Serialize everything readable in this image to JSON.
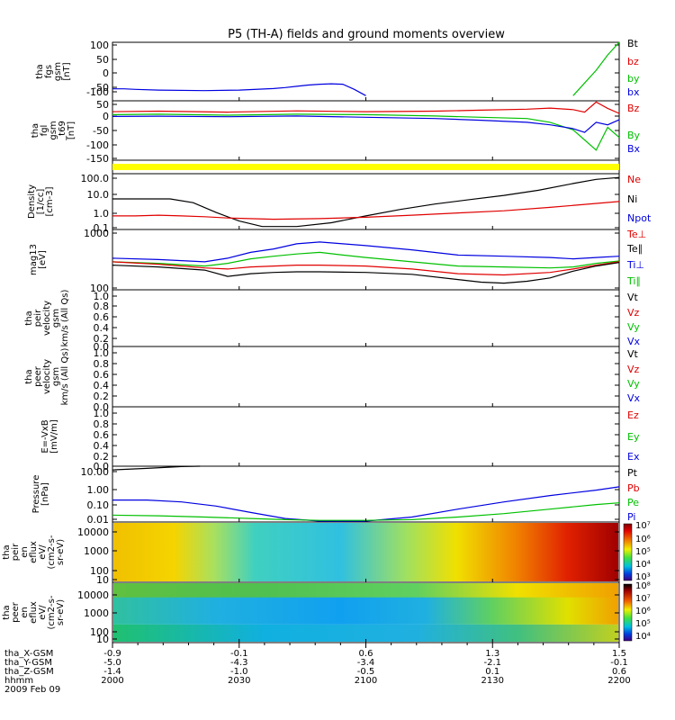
{
  "title": "P5 (TH-A) fields and ground moments overview",
  "colors": {
    "black": "#000000",
    "red": "#e00000",
    "green": "#00c000",
    "blue": "#0000e0",
    "yellow": "#ffff00"
  },
  "xaxis": {
    "rows": [
      {
        "label": "tha_X-GSM",
        "values": [
          "-0.9",
          "-0.1",
          "0.6",
          "1.3",
          "1.5"
        ]
      },
      {
        "label": "tha_Y-GSM",
        "values": [
          "-5.0",
          "-4.3",
          "-3.4",
          "-2.1",
          "-0.1"
        ]
      },
      {
        "label": "tha_Z-GSM",
        "values": [
          "-1.4",
          "-1.0",
          "-0.5",
          "0.1",
          "0.6"
        ]
      },
      {
        "label": "hhmm",
        "values": [
          "2000",
          "2030",
          "2100",
          "2130",
          "2200"
        ]
      }
    ],
    "date": "2009 Feb 09"
  },
  "panels": [
    {
      "id": "fgs",
      "ylabel": [
        "tha",
        "fgs",
        "gsm",
        "[nT]"
      ],
      "ticks": [
        "100",
        "50",
        "0",
        "-50",
        "-100"
      ],
      "legend": [
        "Bt",
        "bz",
        "by",
        "bx"
      ],
      "legend_colors": [
        "black",
        "red",
        "green",
        "blue"
      ]
    },
    {
      "id": "fgl",
      "ylabel": [
        "tha",
        "fgl",
        "gsm",
        "_t69",
        "[nT]"
      ],
      "ticks": [
        "50",
        "0",
        "-50",
        "-100",
        "-150"
      ],
      "legend": [
        "Bz",
        "By",
        "Bx"
      ],
      "legend_colors": [
        "red",
        "green",
        "blue"
      ]
    },
    {
      "id": "bar",
      "ylabel": [],
      "ticks": [],
      "legend": [],
      "legend_colors": []
    },
    {
      "id": "dens",
      "ylabel": [
        "Density",
        "[1/cc]",
        "[cm-3]"
      ],
      "ticks": [
        "100.0",
        "10.0",
        "1.0",
        "0.1"
      ],
      "legend": [
        "Ne",
        "Ni",
        "Npot"
      ],
      "legend_colors": [
        "red",
        "black",
        "blue"
      ]
    },
    {
      "id": "temp",
      "ylabel": [
        "mag13",
        "[eV]"
      ],
      "ticks": [
        "1000",
        "100"
      ],
      "legend": [
        "Te⊥",
        "Te∥",
        "Ti⊥",
        "Ti∥"
      ],
      "legend_colors": [
        "red",
        "black",
        "blue",
        "green"
      ]
    },
    {
      "id": "peir",
      "ylabel": [
        "tha",
        "peir",
        "velocity",
        "gsm",
        "km/s (All Qs)"
      ],
      "ticks": [
        "1.0",
        "0.8",
        "0.6",
        "0.4",
        "0.2",
        "0.0"
      ],
      "legend": [
        "Vt",
        "Vz",
        "Vy",
        "Vx"
      ],
      "legend_colors": [
        "black",
        "red",
        "green",
        "blue"
      ]
    },
    {
      "id": "peer",
      "ylabel": [
        "tha",
        "peer",
        "velocity",
        "gsm",
        "km/s (All Qs)"
      ],
      "ticks": [
        "1.0",
        "0.8",
        "0.6",
        "0.4",
        "0.2",
        "0.0"
      ],
      "legend": [
        "Vt",
        "Vz",
        "Vy",
        "Vx"
      ],
      "legend_colors": [
        "black",
        "red",
        "green",
        "blue"
      ]
    },
    {
      "id": "efld",
      "ylabel": [
        "E=-VxB",
        "[mV/m]"
      ],
      "ticks": [
        "1.0",
        "0.8",
        "0.6",
        "0.4",
        "0.2",
        "0.0"
      ],
      "legend": [
        "Ez",
        "Ey",
        "Ex"
      ],
      "legend_colors": [
        "red",
        "green",
        "blue"
      ]
    },
    {
      "id": "pres",
      "ylabel": [
        "Pressure",
        "[nPa]"
      ],
      "ticks": [
        "10.00",
        "1.00",
        "0.10",
        "0.01"
      ],
      "legend": [
        "Pt",
        "Pb",
        "Pe",
        "Pi"
      ],
      "legend_colors": [
        "black",
        "red",
        "green",
        "blue"
      ]
    },
    {
      "id": "peirsp",
      "ylabel": [
        "tha",
        "peir",
        "en",
        "eflux",
        "eV/",
        "(cm2-s-",
        "sr-eV)"
      ],
      "ticks": [
        "10000",
        "1000",
        "100",
        "10"
      ],
      "legend": [],
      "legend_colors": []
    },
    {
      "id": "peersp",
      "ylabel": [
        "tha",
        "peer",
        "en",
        "eflux",
        "eV/",
        "(cm2-s-",
        "sr-eV)"
      ],
      "ticks": [
        "10000",
        "1000",
        "100",
        "10"
      ],
      "legend": [],
      "legend_colors": []
    }
  ],
  "colorbars": [
    {
      "ticks": [
        "10⁷",
        "10⁶",
        "10⁵",
        "10⁴",
        "10³"
      ]
    },
    {
      "ticks": [
        "10⁸",
        "10⁷",
        "10⁶",
        "10⁵",
        "10⁴"
      ]
    }
  ],
  "chart_data": {
    "type": "line",
    "title": "P5 (TH-A) fields and ground moments overview",
    "x_unit": "hhmm",
    "x_ticks": [
      "2000",
      "2030",
      "2100",
      "2130",
      "2200"
    ],
    "series": [
      {
        "name": "bx",
        "panel": "fgs",
        "x": [
          0,
          5,
          10,
          20,
          40,
          55,
          70,
          75,
          80,
          85,
          90,
          95,
          100,
          105,
          110
        ],
        "y": [
          -73,
          -73,
          -75,
          -78,
          -80,
          -78,
          -72,
          -68,
          -63,
          -58,
          -55,
          -53,
          -55,
          -75,
          -100
        ]
      },
      {
        "name": "by",
        "panel": "fgs",
        "x": [
          200,
          205,
          210,
          215,
          220
        ],
        "y": [
          -100,
          -50,
          0,
          60,
          110
        ]
      },
      {
        "name": "Bz",
        "panel": "fgl",
        "x": [
          0,
          20,
          50,
          80,
          110,
          140,
          160,
          180,
          190,
          200,
          205,
          210,
          215,
          220
        ],
        "y": [
          22,
          24,
          20,
          25,
          22,
          24,
          28,
          32,
          36,
          30,
          20,
          60,
          35,
          15
        ]
      },
      {
        "name": "By",
        "panel": "fgl",
        "x": [
          0,
          20,
          50,
          80,
          110,
          140,
          160,
          180,
          190,
          200,
          205,
          210,
          215,
          220
        ],
        "y": [
          10,
          12,
          8,
          12,
          10,
          5,
          0,
          -5,
          -20,
          -50,
          -90,
          -130,
          -40,
          -80
        ]
      },
      {
        "name": "Bx",
        "panel": "fgl",
        "x": [
          0,
          20,
          50,
          80,
          110,
          140,
          160,
          180,
          190,
          200,
          205,
          210,
          215,
          220
        ],
        "y": [
          3,
          4,
          2,
          5,
          0,
          -5,
          -12,
          -20,
          -30,
          -45,
          -60,
          -20,
          -30,
          -10
        ]
      },
      {
        "name": "Ni",
        "panel": "dens",
        "x": [
          0,
          25,
          35,
          45,
          55,
          65,
          80,
          95,
          110,
          125,
          140,
          155,
          170,
          185,
          200,
          210,
          220
        ],
        "y": [
          5,
          5,
          3,
          0.8,
          0.25,
          0.12,
          0.12,
          0.2,
          0.5,
          1.2,
          2.5,
          4.5,
          8,
          16,
          40,
          70,
          90
        ]
      },
      {
        "name": "Ne",
        "panel": "dens",
        "x": [
          0,
          10,
          20,
          30,
          40,
          50,
          70,
          90,
          110,
          130,
          150,
          170,
          190,
          220
        ],
        "y": [
          0.5,
          0.5,
          0.55,
          0.5,
          0.45,
          0.38,
          0.32,
          0.35,
          0.42,
          0.55,
          0.75,
          1,
          1.6,
          3.5
        ]
      },
      {
        "name": "Ti⊥",
        "panel": "temp",
        "x": [
          0,
          20,
          40,
          50,
          60,
          70,
          80,
          90,
          100,
          110,
          130,
          150,
          170,
          190,
          200,
          210,
          220
        ],
        "y": [
          350,
          330,
          300,
          350,
          450,
          520,
          650,
          700,
          650,
          600,
          500,
          400,
          380,
          360,
          340,
          360,
          380
        ]
      },
      {
        "name": "Ti∥",
        "panel": "temp",
        "x": [
          0,
          20,
          40,
          50,
          60,
          70,
          80,
          90,
          100,
          110,
          130,
          150,
          170,
          190,
          200,
          210,
          220
        ],
        "y": [
          300,
          280,
          250,
          280,
          340,
          380,
          420,
          450,
          400,
          360,
          300,
          250,
          240,
          230,
          240,
          280,
          310
        ]
      },
      {
        "name": "Te⊥",
        "panel": "temp",
        "x": [
          0,
          20,
          40,
          50,
          60,
          70,
          80,
          90,
          110,
          130,
          150,
          170,
          190,
          200,
          210,
          220
        ],
        "y": [
          300,
          270,
          230,
          220,
          240,
          250,
          260,
          260,
          250,
          220,
          180,
          170,
          190,
          220,
          260,
          300
        ]
      },
      {
        "name": "Te∥",
        "panel": "temp",
        "x": [
          0,
          20,
          40,
          50,
          60,
          70,
          80,
          90,
          110,
          130,
          150,
          160,
          170,
          180,
          190,
          200,
          210,
          220
        ],
        "y": [
          260,
          240,
          210,
          160,
          180,
          190,
          195,
          195,
          190,
          175,
          140,
          125,
          120,
          130,
          150,
          200,
          250,
          290
        ]
      },
      {
        "name": "Pt",
        "panel": "pres",
        "x": [
          0,
          15,
          30,
          38
        ],
        "y": [
          20,
          25,
          33,
          40
        ]
      },
      {
        "name": "Pi",
        "panel": "pres",
        "x": [
          0,
          15,
          30,
          45,
          60,
          75,
          90,
          110,
          130,
          150,
          170,
          190,
          210,
          220
        ],
        "y": [
          0.2,
          0.2,
          0.15,
          0.08,
          0.03,
          0.012,
          0.008,
          0.008,
          0.015,
          0.05,
          0.15,
          0.4,
          0.9,
          1.5
        ]
      },
      {
        "name": "Pe",
        "panel": "pres",
        "x": [
          0,
          20,
          40,
          60,
          75,
          90,
          110,
          130,
          150,
          170,
          190,
          210,
          220
        ],
        "y": [
          0.02,
          0.018,
          0.015,
          0.012,
          0.01,
          0.009,
          0.009,
          0.01,
          0.015,
          0.025,
          0.05,
          0.1,
          0.13
        ]
      }
    ],
    "ylims": {
      "fgs": [
        -120,
        110
      ],
      "fgl": [
        -170,
        65
      ],
      "dens": [
        0.08,
        150
      ],
      "temp": [
        90,
        1200
      ],
      "pres": [
        0.007,
        35
      ]
    }
  }
}
